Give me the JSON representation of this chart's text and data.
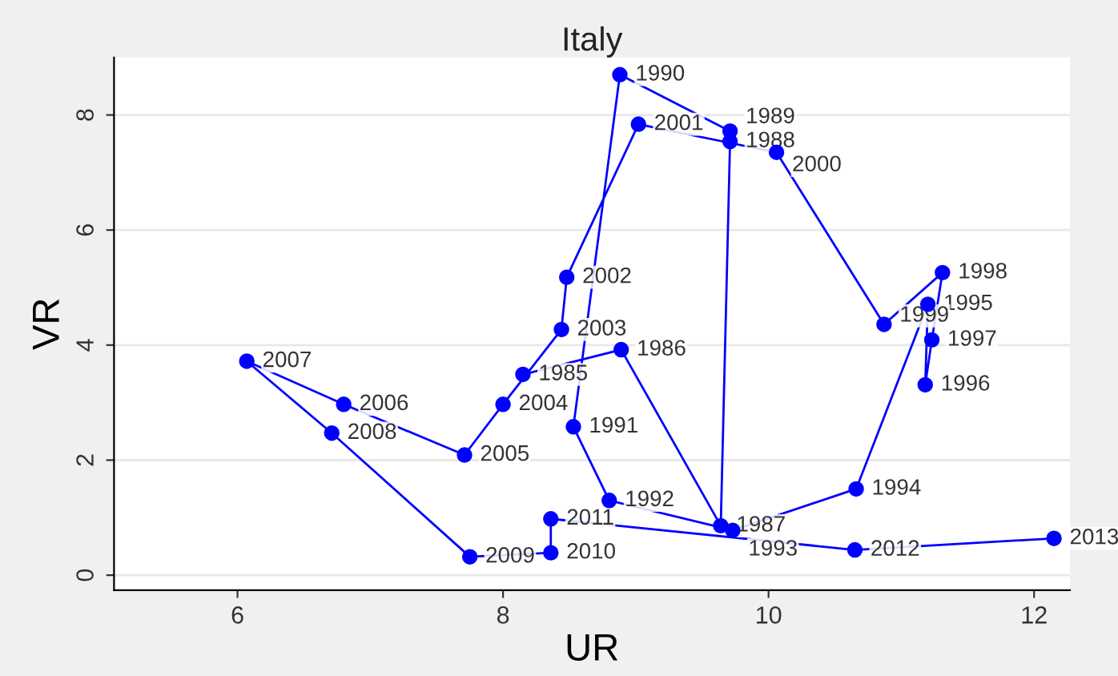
{
  "chart_data": {
    "type": "line",
    "title": "Italy",
    "xlabel": "UR",
    "ylabel": "VR",
    "x": [
      8.15,
      8.89,
      9.64,
      9.71,
      9.71,
      8.88,
      8.53,
      8.8,
      9.73,
      10.66,
      11.2,
      11.18,
      11.23,
      11.31,
      10.87,
      10.06,
      9.02,
      8.48,
      8.44,
      8.0,
      7.71,
      6.8,
      6.07,
      6.71,
      7.75,
      8.36,
      8.36,
      10.65,
      12.15
    ],
    "series": [
      {
        "color": "#0000ff",
        "values": [
          3.49,
          3.92,
          0.86,
          7.54,
          7.72,
          8.7,
          2.58,
          1.3,
          0.78,
          1.5,
          4.71,
          3.31,
          4.09,
          5.26,
          4.36,
          7.35,
          7.84,
          5.18,
          4.27,
          2.97,
          2.09,
          2.97,
          3.72,
          2.47,
          0.32,
          0.39,
          0.98,
          0.44,
          0.64
        ]
      }
    ],
    "annotations": [
      {
        "text": "1985",
        "x": 8.15,
        "y": 3.49
      },
      {
        "text": "1986",
        "x": 8.89,
        "y": 3.92
      },
      {
        "text": "1987",
        "x": 9.64,
        "y": 0.86
      },
      {
        "text": "1988",
        "x": 9.71,
        "y": 7.54
      },
      {
        "text": "1989",
        "x": 9.71,
        "y": 7.72
      },
      {
        "text": "1990",
        "x": 8.88,
        "y": 8.7
      },
      {
        "text": "1991",
        "x": 8.53,
        "y": 2.58
      },
      {
        "text": "1992",
        "x": 8.8,
        "y": 1.3
      },
      {
        "text": "1993",
        "x": 9.73,
        "y": 0.78
      },
      {
        "text": "1994",
        "x": 10.66,
        "y": 1.5
      },
      {
        "text": "1995",
        "x": 11.2,
        "y": 4.71
      },
      {
        "text": "1996",
        "x": 11.18,
        "y": 3.31
      },
      {
        "text": "1997",
        "x": 11.23,
        "y": 4.09
      },
      {
        "text": "1998",
        "x": 11.31,
        "y": 5.26
      },
      {
        "text": "1999",
        "x": 10.87,
        "y": 4.36
      },
      {
        "text": "2000",
        "x": 10.06,
        "y": 7.35
      },
      {
        "text": "2001",
        "x": 9.02,
        "y": 7.84
      },
      {
        "text": "2002",
        "x": 8.48,
        "y": 5.18
      },
      {
        "text": "2003",
        "x": 8.44,
        "y": 4.27
      },
      {
        "text": "2004",
        "x": 8.0,
        "y": 2.97
      },
      {
        "text": "2005",
        "x": 7.71,
        "y": 2.09
      },
      {
        "text": "2006",
        "x": 6.8,
        "y": 2.97
      },
      {
        "text": "2007",
        "x": 6.07,
        "y": 3.72
      },
      {
        "text": "2008",
        "x": 6.71,
        "y": 2.47
      },
      {
        "text": "2009",
        "x": 7.75,
        "y": 0.32
      },
      {
        "text": "2010",
        "x": 8.36,
        "y": 0.39
      },
      {
        "text": "2011",
        "x": 8.36,
        "y": 0.98
      },
      {
        "text": "2012",
        "x": 10.65,
        "y": 0.44
      },
      {
        "text": "2013",
        "x": 12.15,
        "y": 0.64
      }
    ],
    "xlim": [
      5.07,
      12.27
    ],
    "ylim": [
      -0.26,
      9.0
    ],
    "xticks": [
      6,
      8,
      10,
      12
    ],
    "yticks": [
      0,
      2,
      4,
      6,
      8
    ],
    "grid": "y",
    "marker": "circle",
    "line_style": "solid"
  }
}
